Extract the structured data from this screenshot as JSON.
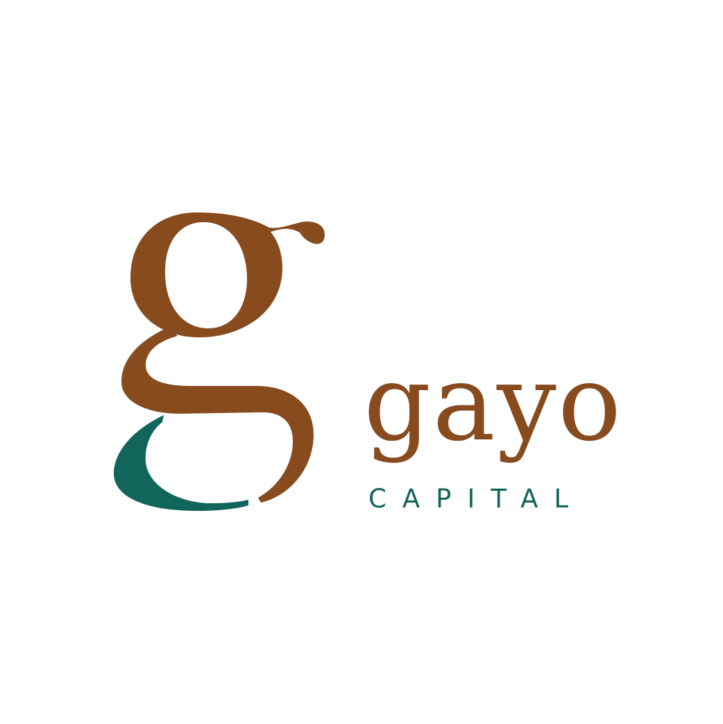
{
  "logo": {
    "brand_name": "gayo",
    "tagline": "CAPITAL",
    "icon": "stylized-g-icon",
    "colors": {
      "brown": "#874B1E",
      "teal": "#11655A",
      "background": "#FFFFFF"
    }
  }
}
